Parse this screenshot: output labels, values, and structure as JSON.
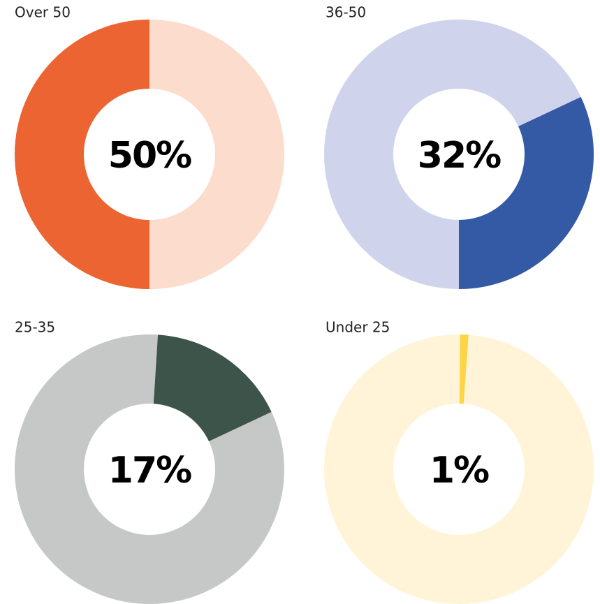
{
  "chart_data": [
    {
      "type": "donut",
      "title": "Over 50",
      "values": [
        50
      ],
      "value_labels": [
        "50%"
      ],
      "color": "#ec6431",
      "track_color": "#fcdccc"
    },
    {
      "type": "donut",
      "title": "36-50",
      "values": [
        32
      ],
      "value_labels": [
        "32%"
      ],
      "color": "#3459a5",
      "track_color": "#cfd3eb"
    },
    {
      "type": "donut",
      "title": "25-35",
      "values": [
        17
      ],
      "value_labels": [
        "17%"
      ],
      "color": "#3d544a",
      "track_color": "#c6c8c7"
    },
    {
      "type": "donut",
      "title": "Under 25",
      "values": [
        1
      ],
      "value_labels": [
        "1%"
      ],
      "color": "#fdd444",
      "track_color": "#fff4d8"
    }
  ]
}
